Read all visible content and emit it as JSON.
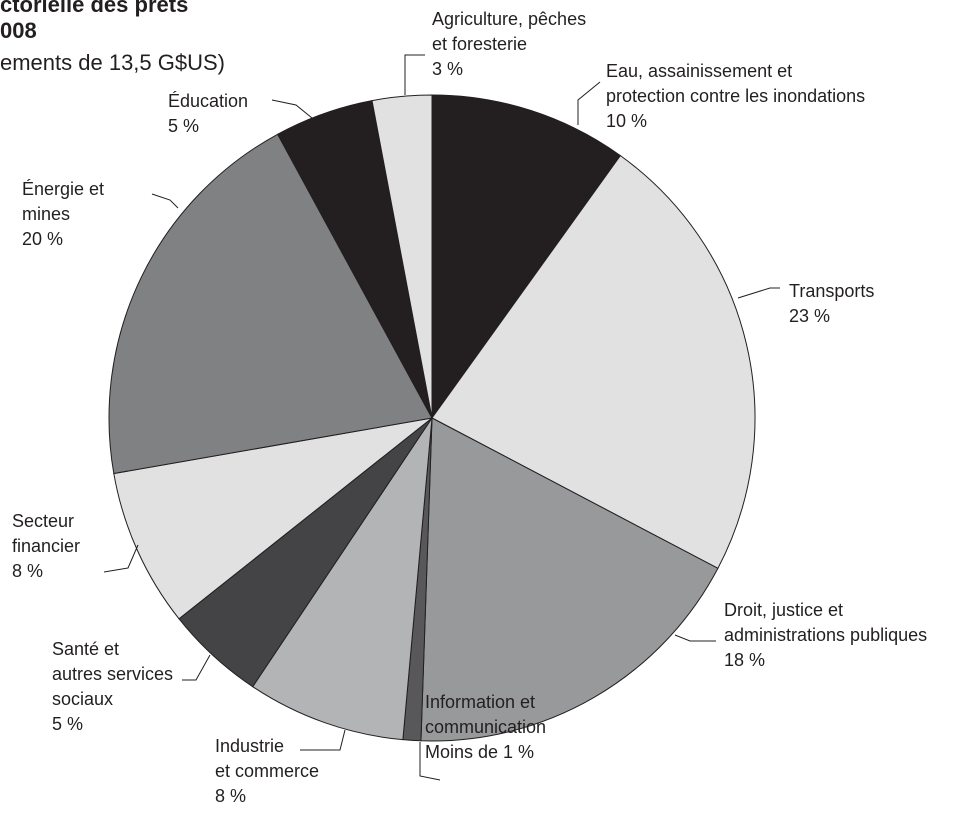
{
  "chart_data": {
    "type": "pie",
    "title": [
      "ctorielle des prêts",
      "008"
    ],
    "subtitle": "ements de 13,5 G$US)",
    "categories": [
      [
        "Eau, assainissement et",
        "protection contre les inondations"
      ],
      [
        "Transports"
      ],
      [
        "Droit, justice et",
        "administrations publiques"
      ],
      [
        "Information et",
        "communication"
      ],
      [
        "Industrie",
        "et commerce"
      ],
      [
        "Santé et",
        "autres services",
        "sociaux"
      ],
      [
        "Secteur",
        "financier"
      ],
      [
        "Énergie et",
        "mines"
      ],
      [
        "Éducation"
      ],
      [
        "Agriculture, pêches",
        "et foresterie"
      ]
    ],
    "values": [
      10,
      23,
      18,
      0.9,
      8,
      5,
      8,
      20,
      5,
      3
    ],
    "value_labels": [
      "10 %",
      "23 %",
      "18 %",
      "Moins de 1 %",
      "8 %",
      "5 %",
      "8 %",
      "20 %",
      "5 %",
      "3 %"
    ],
    "colors": [
      "#231f20",
      "#e1e1e2",
      "#98999b",
      "#58585a",
      "#b3b4b6",
      "#444446",
      "#e1e1e2",
      "#808183",
      "#231f20",
      "#e1e1e2"
    ]
  }
}
